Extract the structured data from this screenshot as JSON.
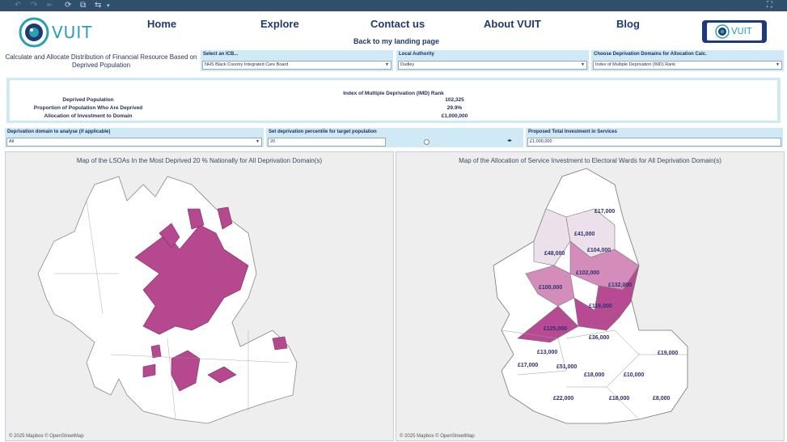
{
  "nav": {
    "logo_text": "VUIT",
    "home": "Home",
    "explore": "Explore",
    "contact": "Contact us",
    "about": "About VUIT",
    "blog": "Blog",
    "back_link": "Back to my landing page",
    "logo_button_text": "VUIT"
  },
  "page_title": "Calculate and Allocate Distribution of Financial Resource Based on Deprived Population",
  "filters": {
    "icb": {
      "label": "Select an ICB...",
      "value": "NHS Black Country Integrated Care Board"
    },
    "la": {
      "label": "Local Authority",
      "value": "Dudley"
    },
    "domains": {
      "label": "Choose Deprivation Domains for Allocation Calc.",
      "value": "Index of Multiple Deprivation (IMD) Rank"
    }
  },
  "summary": {
    "header": "Index of Multiple Deprivation (IMD) Rank",
    "rows": [
      {
        "label": "Deprived Population",
        "value": "102,325"
      },
      {
        "label": "Proportion of Population Who Are Deprived",
        "value": "29.9%"
      },
      {
        "label": "Allocation of Investment to Domain",
        "value": "£1,000,000"
      }
    ]
  },
  "controls": {
    "domain": {
      "label": "Deprivation domain to analyse (if applicable)",
      "value": "All"
    },
    "percentile": {
      "label": "Set deprivation percentile for target population",
      "value": "20"
    },
    "investment": {
      "label": "Proposed Total Investment in Services",
      "value": "£1,000,000"
    }
  },
  "map_left": {
    "title": "Map of the LSOAs In the Most Deprived 20 % Nationally for All Deprivation Domain(s)",
    "attribution": "© 2025 Mapbox © OpenStreetMap"
  },
  "map_right": {
    "title": "Map of the Allocation of Service Investment to Electoral Wards for All Deprivation Domain(s)",
    "attribution": "© 2025 Mapbox © OpenStreetMap",
    "ward_labels": [
      "£17,000",
      "£41,000",
      "£48,000",
      "£104,000",
      "£102,000",
      "£100,000",
      "£132,000",
      "£116,000",
      "£125,000",
      "£36,000",
      "£13,000",
      "£19,000",
      "£17,000",
      "£51,000",
      "£18,000",
      "£10,000",
      "£22,000",
      "£18,000",
      "£8,000"
    ]
  },
  "colors": {
    "toolbar": "#2f4f6b",
    "filter_bg": "#cfe9f7",
    "deprived_fill": "#b5488e",
    "high_alloc": "#b84a93",
    "mid_alloc": "#d48dbb",
    "low_alloc": "#ece0ea"
  }
}
